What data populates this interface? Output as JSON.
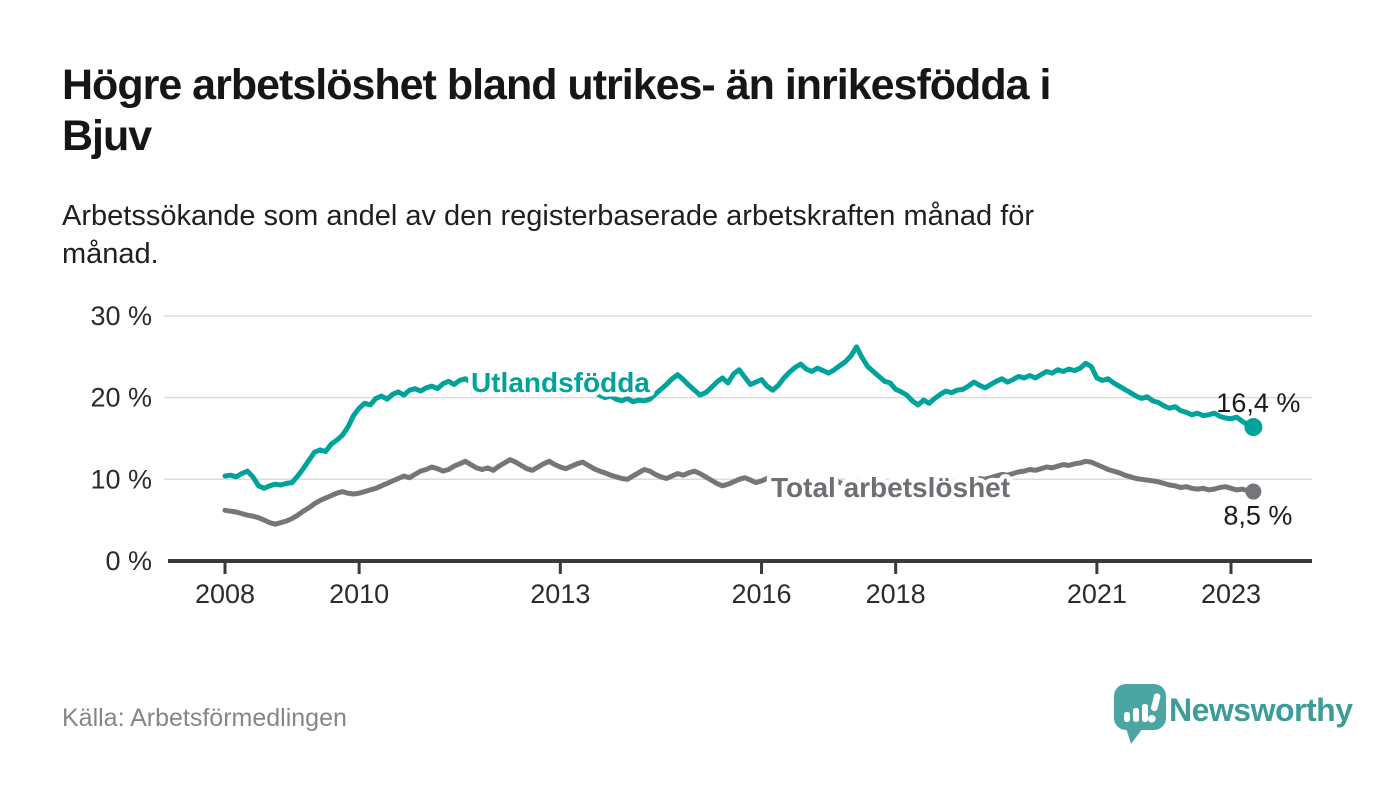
{
  "header": {
    "title_lines": [
      "Högre arbetslöshet bland utrikes- än inrikesfödda i",
      "Bjuv"
    ],
    "subtitle_lines": [
      "Arbetssökande som andel av den registerbaserade arbetskraften månad för",
      "månad."
    ]
  },
  "footer": {
    "source": "Källa: Arbetsförmedlingen",
    "brand": "Newsworthy"
  },
  "colors": {
    "foreign_born_line": "#00A39B",
    "total_line": "#76767A",
    "total_label_text": "#6E6E73",
    "end_value_text": "#1A1A1A",
    "logo_teal": "#4BA6A3"
  },
  "chart_data": {
    "type": "line",
    "title": "Högre arbetslöshet bland utrikes- än inrikesfödda i Bjuv",
    "subtitle": "Arbetssökande som andel av den registerbaserade arbetskraften månad för månad.",
    "xlabel": "",
    "ylabel": "",
    "x_start": "2008-01",
    "x_end": "2023-05",
    "x_interval": "monthly",
    "ylim": [
      0,
      32
    ],
    "grid": "horizontal",
    "legend_position": "inline-labels",
    "yticks": [
      {
        "value": 0,
        "label": "0 %"
      },
      {
        "value": 10,
        "label": "10 %"
      },
      {
        "value": 20,
        "label": "20 %"
      },
      {
        "value": 30,
        "label": "30 %"
      }
    ],
    "xticks": [
      {
        "year": 2008,
        "label": "2008"
      },
      {
        "year": 2010,
        "label": "2010"
      },
      {
        "year": 2013,
        "label": "2013"
      },
      {
        "year": 2016,
        "label": "2016"
      },
      {
        "year": 2018,
        "label": "2018"
      },
      {
        "year": 2021,
        "label": "2021"
      },
      {
        "year": 2023,
        "label": "2023"
      }
    ],
    "series": [
      {
        "name": "Utlandsfödda",
        "color": "#00A39B",
        "label_color": "#00A39B",
        "end_label": "16,4 %",
        "end_value": 16.4,
        "values": [
          10.4,
          10.5,
          10.3,
          10.7,
          11.0,
          10.3,
          9.2,
          8.9,
          9.2,
          9.4,
          9.3,
          9.5,
          9.6,
          10.4,
          11.3,
          12.3,
          13.3,
          13.6,
          13.4,
          14.3,
          14.8,
          15.4,
          16.4,
          17.8,
          18.7,
          19.3,
          19.1,
          19.9,
          20.2,
          19.8,
          20.4,
          20.7,
          20.3,
          20.9,
          21.1,
          20.8,
          21.2,
          21.4,
          21.1,
          21.7,
          22.0,
          21.6,
          22.1,
          22.3,
          21.9,
          22.2,
          22.6,
          22.2,
          22.4,
          22.7,
          22.3,
          22.0,
          21.8,
          22.1,
          21.9,
          21.6,
          21.8,
          21.5,
          21.3,
          21.6,
          21.4,
          21.1,
          20.9,
          21.2,
          20.8,
          20.5,
          20.7,
          20.3,
          20.0,
          20.2,
          19.8,
          19.6,
          19.9,
          19.5,
          19.7,
          19.6,
          19.8,
          20.4,
          21.0,
          21.6,
          22.3,
          22.8,
          22.2,
          21.5,
          20.9,
          20.3,
          20.6,
          21.2,
          21.9,
          22.4,
          21.8,
          22.9,
          23.4,
          22.5,
          21.6,
          21.9,
          22.2,
          21.4,
          20.9,
          21.5,
          22.4,
          23.1,
          23.7,
          24.1,
          23.5,
          23.2,
          23.6,
          23.3,
          23.0,
          23.4,
          23.9,
          24.4,
          25.1,
          26.2,
          24.9,
          23.8,
          23.2,
          22.6,
          22.0,
          21.8,
          21.0,
          20.7,
          20.3,
          19.6,
          19.1,
          19.7,
          19.3,
          19.9,
          20.4,
          20.8,
          20.6,
          20.9,
          21.0,
          21.4,
          21.9,
          21.5,
          21.2,
          21.6,
          22.0,
          22.3,
          21.9,
          22.2,
          22.6,
          22.4,
          22.7,
          22.4,
          22.8,
          23.2,
          23.0,
          23.4,
          23.2,
          23.5,
          23.3,
          23.6,
          24.2,
          23.8,
          22.4,
          22.1,
          22.3,
          21.8,
          21.4,
          21.0,
          20.6,
          20.2,
          19.9,
          20.1,
          19.6,
          19.4,
          19.0,
          18.7,
          18.9,
          18.4,
          18.2,
          17.9,
          18.1,
          17.8,
          17.9,
          18.1,
          17.7,
          17.5,
          17.4,
          17.6,
          17.1,
          16.7,
          16.4
        ]
      },
      {
        "name": "Total arbetslöshet",
        "color": "#76767A",
        "label_color": "#6E6E73",
        "end_label": "8,5 %",
        "end_value": 8.5,
        "values": [
          6.2,
          6.1,
          6.0,
          5.8,
          5.6,
          5.5,
          5.3,
          5.0,
          4.7,
          4.5,
          4.7,
          4.9,
          5.2,
          5.6,
          6.1,
          6.5,
          7.0,
          7.4,
          7.7,
          8.0,
          8.3,
          8.5,
          8.3,
          8.2,
          8.3,
          8.5,
          8.7,
          8.9,
          9.2,
          9.5,
          9.8,
          10.1,
          10.4,
          10.2,
          10.6,
          11.0,
          11.2,
          11.5,
          11.3,
          11.0,
          11.2,
          11.6,
          11.9,
          12.2,
          11.8,
          11.4,
          11.2,
          11.4,
          11.1,
          11.6,
          12.0,
          12.4,
          12.1,
          11.7,
          11.3,
          11.1,
          11.5,
          11.9,
          12.2,
          11.8,
          11.5,
          11.3,
          11.6,
          11.9,
          12.1,
          11.7,
          11.3,
          11.0,
          10.8,
          10.5,
          10.3,
          10.1,
          10.0,
          10.4,
          10.8,
          11.2,
          11.0,
          10.6,
          10.3,
          10.1,
          10.4,
          10.7,
          10.5,
          10.8,
          11.0,
          10.7,
          10.3,
          9.9,
          9.5,
          9.2,
          9.4,
          9.7,
          10.0,
          10.2,
          9.9,
          9.6,
          9.8,
          10.1,
          10.4,
          10.2,
          9.9,
          9.6,
          9.4,
          9.7,
          9.9,
          9.6,
          9.3,
          9.5,
          9.7,
          9.9,
          9.6,
          9.4,
          9.2,
          9.0,
          9.2,
          9.5,
          9.7,
          9.4,
          9.1,
          8.9,
          8.7,
          8.9,
          9.2,
          9.0,
          8.7,
          8.5,
          8.8,
          9.0,
          9.3,
          9.5,
          9.2,
          9.4,
          9.4,
          9.6,
          9.9,
          10.1,
          10.0,
          10.2,
          10.4,
          10.6,
          10.5,
          10.7,
          10.9,
          11.0,
          11.2,
          11.1,
          11.3,
          11.5,
          11.4,
          11.6,
          11.8,
          11.7,
          11.9,
          12.0,
          12.2,
          12.1,
          11.8,
          11.5,
          11.2,
          11.0,
          10.8,
          10.5,
          10.3,
          10.1,
          10.0,
          9.9,
          9.8,
          9.7,
          9.5,
          9.3,
          9.2,
          9.0,
          9.1,
          8.9,
          8.8,
          8.9,
          8.7,
          8.8,
          9.0,
          9.1,
          8.9,
          8.7,
          8.8,
          8.6,
          8.5
        ]
      }
    ]
  }
}
